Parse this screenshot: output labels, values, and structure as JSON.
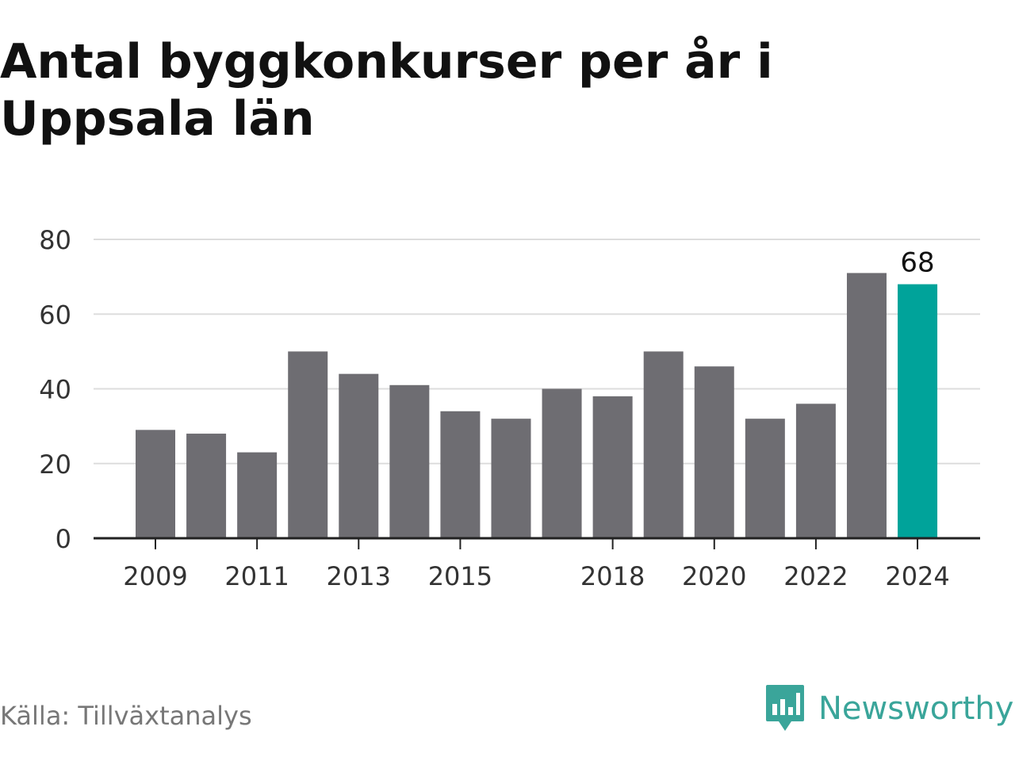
{
  "title": "Antal byggkonkurser per år i Uppsala län",
  "source": "Källa: Tillväxtanalys",
  "brand": {
    "name": "Newsworthy",
    "icon": "newsworthy-logo-icon",
    "color": "#3aa59a"
  },
  "chart_data": {
    "type": "bar",
    "categories": [
      "2009",
      "2010",
      "2011",
      "2012",
      "2013",
      "2014",
      "2015",
      "2016",
      "2017",
      "2018",
      "2019",
      "2020",
      "2021",
      "2022",
      "2023",
      "2024"
    ],
    "values": [
      29,
      28,
      23,
      50,
      44,
      41,
      34,
      32,
      40,
      38,
      50,
      46,
      32,
      36,
      71,
      68
    ],
    "x_tick_labels": [
      "2009",
      "2011",
      "2013",
      "2015",
      "2018",
      "2020",
      "2022",
      "2024"
    ],
    "y_ticks": [
      0,
      20,
      40,
      60,
      80
    ],
    "ylim": [
      0,
      80
    ],
    "grid": true,
    "highlight": {
      "category": "2024",
      "value_label": "68",
      "color": "#00a39a"
    },
    "bar_color": "#6e6d72",
    "xlabel": "",
    "ylabel": ""
  }
}
